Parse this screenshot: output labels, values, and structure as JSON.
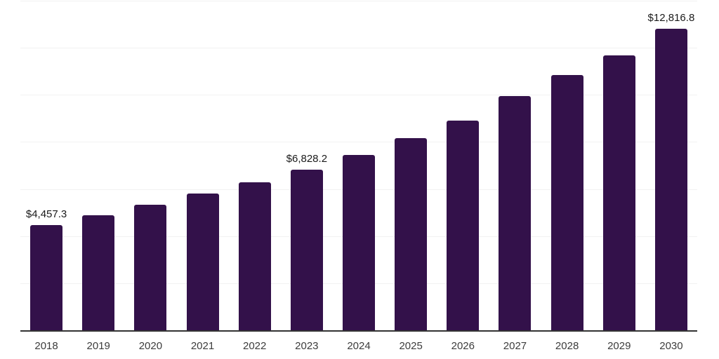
{
  "chart_data": {
    "type": "bar",
    "title": "",
    "xlabel": "",
    "ylabel": "",
    "categories": [
      "2018",
      "2019",
      "2020",
      "2021",
      "2022",
      "2023",
      "2024",
      "2025",
      "2026",
      "2027",
      "2028",
      "2029",
      "2030"
    ],
    "values": [
      4457.3,
      4875,
      5320,
      5820,
      6295,
      6828.2,
      7435,
      8150,
      8905,
      9955,
      10840,
      11670,
      12816.8
    ],
    "data_labels": [
      "$4,457.3",
      "",
      "",
      "",
      "",
      "$6,828.2",
      "",
      "",
      "",
      "",
      "",
      "",
      "$12,816.8"
    ],
    "ylim": [
      0,
      14000
    ],
    "gridline_step": 2000,
    "grid": "horizontal",
    "legend": "none",
    "y_tick_labels_visible": false,
    "colors": {
      "bar": "#33114A",
      "gridline": "#F2F2F2",
      "axis_line": "#333333",
      "data_label_text": "#1A1A1A",
      "tick_label_text": "#3C3C3C",
      "background": "#FFFFFF"
    }
  }
}
